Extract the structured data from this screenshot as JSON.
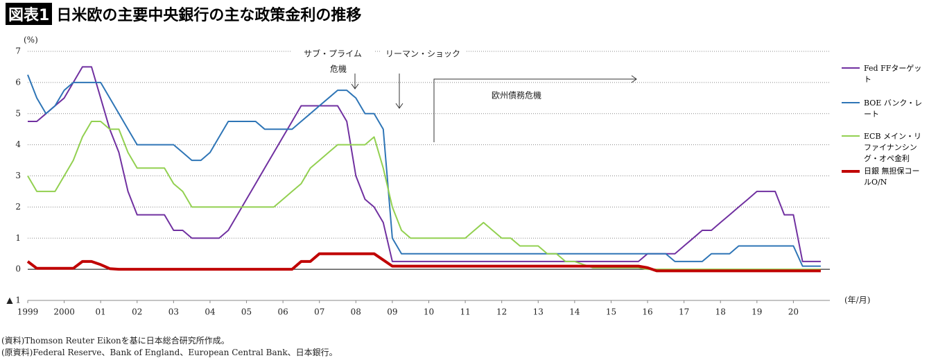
{
  "chart_data": {
    "type": "line",
    "title_tag": "図表1",
    "title": "日米欧の主要中央銀行の主な政策金利の推移",
    "y_label": "(%)",
    "x_label": "(年/月)",
    "annotations": [
      "サブ・プライム",
      "危機",
      "リーマン・ショック",
      "欧州債務危機"
    ],
    "sources": [
      "(資料)Thomson Reuter Eikonを基に日本総合研究所作成。",
      "(原資料)Federal Reserve、Bank of England、European Central Bank、日本銀行。"
    ],
    "xlim": [
      1999,
      2021
    ],
    "xticks": [
      {
        "value": 1999,
        "label": "1999"
      },
      {
        "value": 2000,
        "label": "2000"
      },
      {
        "value": 2001,
        "label": "01"
      },
      {
        "value": 2002,
        "label": "02"
      },
      {
        "value": 2003,
        "label": "03"
      },
      {
        "value": 2004,
        "label": "04"
      },
      {
        "value": 2005,
        "label": "05"
      },
      {
        "value": 2006,
        "label": "06"
      },
      {
        "value": 2007,
        "label": "07"
      },
      {
        "value": 2008,
        "label": "08"
      },
      {
        "value": 2009,
        "label": "09"
      },
      {
        "value": 2010,
        "label": "10"
      },
      {
        "value": 2011,
        "label": "11"
      },
      {
        "value": 2012,
        "label": "12"
      },
      {
        "value": 2013,
        "label": "13"
      },
      {
        "value": 2014,
        "label": "14"
      },
      {
        "value": 2015,
        "label": "15"
      },
      {
        "value": 2016,
        "label": "16"
      },
      {
        "value": 2017,
        "label": "17"
      },
      {
        "value": 2018,
        "label": "18"
      },
      {
        "value": 2019,
        "label": "19"
      },
      {
        "value": 2020,
        "label": "20"
      }
    ],
    "ylim": [
      -1,
      7
    ],
    "yticks": [
      {
        "value": -1,
        "label": "▲ 1"
      },
      0,
      1,
      2,
      3,
      4,
      5,
      6,
      7
    ],
    "grid": true,
    "x": [
      1999,
      1999.25,
      1999.5,
      1999.75,
      2000,
      2000.25,
      2000.5,
      2000.75,
      2001,
      2001.25,
      2001.5,
      2001.75,
      2002,
      2002.25,
      2002.5,
      2002.75,
      2003,
      2003.25,
      2003.5,
      2003.75,
      2004,
      2004.25,
      2004.5,
      2004.75,
      2005,
      2005.25,
      2005.5,
      2005.75,
      2006,
      2006.25,
      2006.5,
      2006.75,
      2007,
      2007.25,
      2007.5,
      2007.75,
      2008,
      2008.25,
      2008.5,
      2008.75,
      2009,
      2009.25,
      2009.5,
      2009.75,
      2010,
      2010.25,
      2010.5,
      2010.75,
      2011,
      2011.25,
      2011.5,
      2011.75,
      2012,
      2012.25,
      2012.5,
      2012.75,
      2013,
      2013.25,
      2013.5,
      2013.75,
      2014,
      2014.25,
      2014.5,
      2014.75,
      2015,
      2015.25,
      2015.5,
      2015.75,
      2016,
      2016.25,
      2016.5,
      2016.75,
      2017,
      2017.25,
      2017.5,
      2017.75,
      2018,
      2018.25,
      2018.5,
      2018.75,
      2019,
      2019.25,
      2019.5,
      2019.75,
      2020,
      2020.25,
      2020.5,
      2020.75
    ],
    "series": [
      {
        "name": "Fed FFターゲット",
        "color": "#7030a0",
        "width": 2,
        "values": [
          4.75,
          4.75,
          5.0,
          5.25,
          5.5,
          6.0,
          6.5,
          6.5,
          5.5,
          4.5,
          3.75,
          2.5,
          1.75,
          1.75,
          1.75,
          1.75,
          1.25,
          1.25,
          1.0,
          1.0,
          1.0,
          1.0,
          1.25,
          1.75,
          2.25,
          2.75,
          3.25,
          3.75,
          4.25,
          4.75,
          5.25,
          5.25,
          5.25,
          5.25,
          5.25,
          4.75,
          3.0,
          2.25,
          2.0,
          1.5,
          0.25,
          0.25,
          0.25,
          0.25,
          0.25,
          0.25,
          0.25,
          0.25,
          0.25,
          0.25,
          0.25,
          0.25,
          0.25,
          0.25,
          0.25,
          0.25,
          0.25,
          0.25,
          0.25,
          0.25,
          0.25,
          0.25,
          0.25,
          0.25,
          0.25,
          0.25,
          0.25,
          0.25,
          0.5,
          0.5,
          0.5,
          0.5,
          0.75,
          1.0,
          1.25,
          1.25,
          1.5,
          1.75,
          2.0,
          2.25,
          2.5,
          2.5,
          2.5,
          1.75,
          1.75,
          0.25,
          0.25,
          0.25
        ]
      },
      {
        "name": "BOE バンク・レート",
        "color": "#2e75b6",
        "width": 2,
        "values": [
          6.25,
          5.5,
          5.0,
          5.25,
          5.75,
          6.0,
          6.0,
          6.0,
          6.0,
          5.5,
          5.0,
          4.5,
          4.0,
          4.0,
          4.0,
          4.0,
          4.0,
          3.75,
          3.5,
          3.5,
          3.75,
          4.25,
          4.75,
          4.75,
          4.75,
          4.75,
          4.5,
          4.5,
          4.5,
          4.5,
          4.75,
          5.0,
          5.25,
          5.5,
          5.75,
          5.75,
          5.5,
          5.0,
          5.0,
          4.5,
          1.0,
          0.5,
          0.5,
          0.5,
          0.5,
          0.5,
          0.5,
          0.5,
          0.5,
          0.5,
          0.5,
          0.5,
          0.5,
          0.5,
          0.5,
          0.5,
          0.5,
          0.5,
          0.5,
          0.5,
          0.5,
          0.5,
          0.5,
          0.5,
          0.5,
          0.5,
          0.5,
          0.5,
          0.5,
          0.5,
          0.5,
          0.25,
          0.25,
          0.25,
          0.25,
          0.5,
          0.5,
          0.5,
          0.75,
          0.75,
          0.75,
          0.75,
          0.75,
          0.75,
          0.75,
          0.1,
          0.1,
          0.1
        ]
      },
      {
        "name": "ECB メイン・リファイナンシング・オペ金利",
        "color": "#92d050",
        "width": 2,
        "values": [
          3.0,
          2.5,
          2.5,
          2.5,
          3.0,
          3.5,
          4.25,
          4.75,
          4.75,
          4.5,
          4.5,
          3.75,
          3.25,
          3.25,
          3.25,
          3.25,
          2.75,
          2.5,
          2.0,
          2.0,
          2.0,
          2.0,
          2.0,
          2.0,
          2.0,
          2.0,
          2.0,
          2.0,
          2.25,
          2.5,
          2.75,
          3.25,
          3.5,
          3.75,
          4.0,
          4.0,
          4.0,
          4.0,
          4.25,
          3.25,
          2.0,
          1.25,
          1.0,
          1.0,
          1.0,
          1.0,
          1.0,
          1.0,
          1.0,
          1.25,
          1.5,
          1.25,
          1.0,
          1.0,
          0.75,
          0.75,
          0.75,
          0.5,
          0.5,
          0.25,
          0.25,
          0.15,
          0.05,
          0.05,
          0.05,
          0.05,
          0.05,
          0.05,
          0,
          0,
          0,
          0,
          0,
          0,
          0,
          0,
          0,
          0,
          0,
          0,
          0,
          0,
          0,
          0,
          0,
          0,
          0,
          0
        ]
      },
      {
        "name": "日銀 無担保コールO/N",
        "color": "#c00000",
        "width": 4,
        "values": [
          0.25,
          0.03,
          0.03,
          0.03,
          0.03,
          0.03,
          0.25,
          0.25,
          0.15,
          0.02,
          0.0,
          0.0,
          0,
          0,
          0,
          0,
          0,
          0,
          0,
          0,
          0,
          0,
          0,
          0,
          0,
          0,
          0,
          0,
          0.0,
          0.0,
          0.25,
          0.25,
          0.5,
          0.5,
          0.5,
          0.5,
          0.5,
          0.5,
          0.5,
          0.3,
          0.1,
          0.1,
          0.1,
          0.1,
          0.1,
          0.1,
          0.1,
          0.1,
          0.1,
          0.1,
          0.1,
          0.1,
          0.1,
          0.1,
          0.1,
          0.1,
          0.1,
          0.1,
          0.1,
          0.1,
          0.1,
          0.1,
          0.1,
          0.1,
          0.1,
          0.1,
          0.1,
          0.1,
          0.05,
          -0.05,
          -0.05,
          -0.05,
          -0.05,
          -0.05,
          -0.05,
          -0.05,
          -0.05,
          -0.05,
          -0.05,
          -0.05,
          -0.05,
          -0.05,
          -0.05,
          -0.05,
          -0.05,
          -0.05,
          -0.05,
          -0.05
        ]
      }
    ]
  }
}
